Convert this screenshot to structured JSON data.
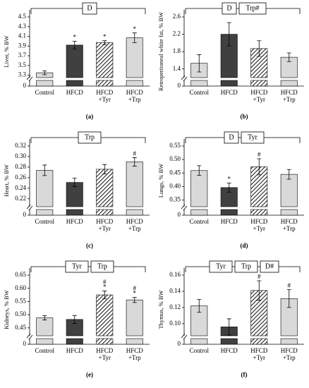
{
  "chart_data": [
    {
      "type": "bar",
      "panel": "(a)",
      "ylabel": "Liver, % BW",
      "categories": [
        "Control",
        "HFCD",
        "HFCD +Tyr",
        "HFCD +Trp"
      ],
      "values": [
        3.35,
        3.92,
        3.97,
        4.07
      ],
      "errors": [
        0.04,
        0.08,
        0.04,
        0.1
      ],
      "colors": [
        "#d9d9d9",
        "#404040",
        "hatch",
        "#d9d9d9"
      ],
      "markers": [
        null,
        [
          "*"
        ],
        [
          "*"
        ],
        [
          "*"
        ]
      ],
      "groups": [
        "D"
      ],
      "ylim": [
        0,
        4.5
      ],
      "ybreak": 3.25,
      "yticks": [
        0,
        3.3,
        3.5,
        3.7,
        3.9,
        4.1,
        4.3,
        4.5
      ]
    },
    {
      "type": "bar",
      "panel": "(b)",
      "ylabel": "Retroperitoneal white fat, % BW",
      "categories": [
        "Control",
        "HFCD",
        "HFCD +Tyr",
        "HFCD +Trp"
      ],
      "values": [
        1.53,
        2.2,
        1.87,
        1.67
      ],
      "errors": [
        0.2,
        0.27,
        0.18,
        0.1
      ],
      "colors": [
        "#d9d9d9",
        "#404040",
        "hatch",
        "#d9d9d9"
      ],
      "markers": [
        null,
        null,
        null,
        null
      ],
      "groups": [
        "D",
        "Trp#"
      ],
      "ylim": [
        0,
        2.6
      ],
      "ybreak": 1.2,
      "yticks": [
        0,
        1.4,
        1.8,
        2.2,
        2.6
      ]
    },
    {
      "type": "bar",
      "panel": "(c)",
      "ylabel": "Heart, % BW",
      "categories": [
        "Control",
        "HFCD",
        "HFCD +Tyr",
        "HFCD +Trp"
      ],
      "values": [
        0.274,
        0.251,
        0.276,
        0.29
      ],
      "errors": [
        0.01,
        0.008,
        0.009,
        0.008
      ],
      "colors": [
        "#d9d9d9",
        "#404040",
        "hatch",
        "#d9d9d9"
      ],
      "markers": [
        null,
        null,
        null,
        [
          "#"
        ]
      ],
      "groups": [
        "Trp"
      ],
      "ylim": [
        0,
        0.32
      ],
      "ybreak": 0.205,
      "yticks": [
        0,
        0.22,
        0.24,
        0.26,
        0.28,
        {
          "value": 0.3,
          "label": "0.30"
        },
        0.32
      ]
    },
    {
      "type": "bar",
      "panel": "(d)",
      "ylabel": "Lungs, % BW",
      "categories": [
        "Control",
        "HFCD",
        "HFCD +Tyr",
        "HFCD +Trp"
      ],
      "values": [
        0.459,
        0.396,
        0.473,
        0.445
      ],
      "errors": [
        0.018,
        0.017,
        0.03,
        0.018
      ],
      "colors": [
        "#d9d9d9",
        "#404040",
        "hatch",
        "#d9d9d9"
      ],
      "markers": [
        null,
        [
          "*"
        ],
        [
          "#"
        ],
        null
      ],
      "groups": [
        "D",
        "Tyr"
      ],
      "ylim": [
        0,
        0.55
      ],
      "ybreak": 0.325,
      "yticks": [
        0,
        0.35,
        {
          "value": 0.4,
          "label": "0.40"
        },
        0.45,
        {
          "value": 0.5,
          "label": "0.50"
        },
        0.55
      ]
    },
    {
      "type": "bar",
      "panel": "(e)",
      "ylabel": "Kidneys, % BW",
      "categories": [
        "Control",
        "HFCD",
        "HFCD +Tyr",
        "HFCD +Trp"
      ],
      "values": [
        0.488,
        0.482,
        0.575,
        0.556
      ],
      "errors": [
        0.008,
        0.015,
        0.015,
        0.01
      ],
      "colors": [
        "#d9d9d9",
        "#404040",
        "hatch",
        "#d9d9d9"
      ],
      "markers": [
        null,
        null,
        [
          "#",
          "*"
        ],
        [
          "#",
          "*"
        ]
      ],
      "groups": [
        "Tyr",
        "Trp"
      ],
      "ylim": [
        0,
        0.65
      ],
      "ybreak": 0.42,
      "yticks": [
        0,
        0.45,
        {
          "value": 0.5,
          "label": "0.50"
        },
        0.55,
        {
          "value": 0.6,
          "label": "0.60"
        },
        0.65
      ]
    },
    {
      "type": "bar",
      "panel": "(f)",
      "ylabel": "Thymus, % BW",
      "categories": [
        "Control",
        "HFCD",
        "HFCD +Tyr",
        "HFCD +Trp"
      ],
      "values": [
        0.122,
        0.096,
        0.141,
        0.131
      ],
      "errors": [
        0.008,
        0.01,
        0.012,
        0.011
      ],
      "colors": [
        "#d9d9d9",
        "#404040",
        "hatch",
        "#d9d9d9"
      ],
      "markers": [
        null,
        null,
        [
          "#"
        ],
        [
          "#"
        ]
      ],
      "groups": [
        "Tyr",
        "Trp",
        "D#"
      ],
      "ylim": [
        0,
        0.16
      ],
      "ybreak": 0.085,
      "yticks": [
        0,
        {
          "value": 0.1,
          "label": "0.10"
        },
        0.12,
        0.14,
        0.16
      ]
    }
  ]
}
